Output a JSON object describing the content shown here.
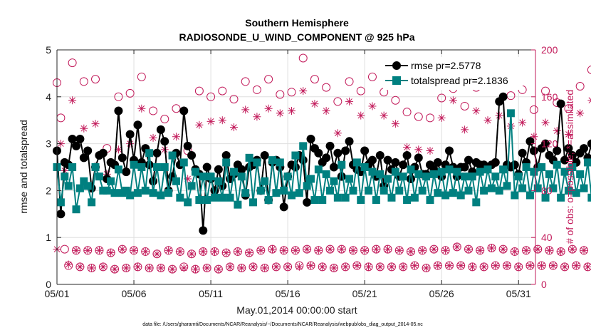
{
  "chart_data": {
    "type": "line",
    "title": "Southern Hemisphere",
    "subtitle": "RADIOSONDE_U_WIND_COMPONENT @ 925 hPa",
    "xlabel": "May.01,2014 00:00:00 start",
    "ylabel": "rmse and totalspread",
    "ylabel_right": "# of obs: o=possible; *=assimilated",
    "ylim": [
      0,
      5
    ],
    "ylim_right": [
      0,
      200
    ],
    "yticks": [
      "0",
      "1",
      "2",
      "3",
      "4",
      "5"
    ],
    "yticks_right": [
      "0",
      "40",
      "80",
      "120",
      "160",
      "200"
    ],
    "xticks": [
      "05/01",
      "05/06",
      "05/11",
      "05/16",
      "05/21",
      "05/26",
      "05/31"
    ],
    "xtick_days": [
      1,
      6,
      11,
      16,
      21,
      26,
      31
    ],
    "xlim_days": [
      1,
      32.1
    ],
    "footnote": "data file: /Users/gharamti/Documents/NCAR/Reanalysis/~/Documents/NCAR/Reanalysis/webpub/obs_diag_output_2014-05.nc",
    "colors": {
      "rmse": "#000000",
      "totalspread": "#008080",
      "obs": "#c21a5a",
      "axis": "#262626"
    },
    "grid": true,
    "legend_placement": "top-right",
    "series_x_start_day": 1,
    "series_x_step_day": 0.25,
    "series": [
      {
        "name": "rmse pr=2.5778",
        "values": [
          2.85,
          1.5,
          2.6,
          2.55,
          3.1,
          2.95,
          3.1,
          2.7,
          2.85,
          2.05,
          2.5,
          2.75,
          2.8,
          2.25,
          2.6,
          2.55,
          3.7,
          2.7,
          2.4,
          3.2,
          2.65,
          3.4,
          2.6,
          2.9,
          2.55,
          2.2,
          2.8,
          3.3,
          3.05,
          2.0,
          2.3,
          2.8,
          2.55,
          3.7,
          2.95,
          2.75,
          2.45,
          2.35,
          1.15,
          2.5,
          2.25,
          2.0,
          2.45,
          2.1,
          2.75,
          2.25,
          2.35,
          2.55,
          2.45,
          1.9,
          2.5,
          2.55,
          2.65,
          2.0,
          2.75,
          1.8,
          2.6,
          2.65,
          2.5,
          1.65,
          2.3,
          2.55,
          2.5,
          2.75,
          2.65,
          1.75,
          3.1,
          2.9,
          2.8,
          2.6,
          2.7,
          2.95,
          2.5,
          2.8,
          2.3,
          2.85,
          3.05,
          2.55,
          2.45,
          2.4,
          2.85,
          2.55,
          2.65,
          2.3,
          2.75,
          2.1,
          2.65,
          2.45,
          2.6,
          2.3,
          2.55,
          2.75,
          2.25,
          2.5,
          2.7,
          2.35,
          2.35,
          2.55,
          2.45,
          2.6,
          2.3,
          2.55,
          2.85,
          2.5,
          2.3,
          2.5,
          2.5,
          2.65,
          2.4,
          2.6,
          2.55,
          2.55,
          2.5,
          2.55,
          2.6,
          3.9,
          4.0,
          2.55,
          2.5,
          2.55,
          2.35,
          2.8,
          2.6,
          3.05,
          2.85,
          2.5,
          2.9,
          3.0,
          2.75,
          2.65,
          2.85,
          3.85,
          2.65,
          2.9,
          2.75,
          2.6,
          2.8,
          2.9,
          2.7,
          3.0,
          2.55,
          2.6,
          3.05,
          3.1,
          2.75,
          2.8,
          2.65,
          3.3,
          3.35,
          2.7,
          2.5,
          2.55,
          2.7,
          3.1,
          3.15,
          2.65,
          2.4,
          2.9,
          3.0,
          2.75,
          3.15,
          2.55,
          2.3,
          2.75,
          2.65,
          2.85,
          2.9,
          2.3,
          2.2,
          2.9,
          2.65,
          2.6,
          2.3,
          3.2,
          2.05,
          2.7,
          2.5,
          2.7,
          2.6,
          2.45,
          2.75,
          2.55,
          2.05,
          2.8,
          2.65,
          2.6
        ]
      },
      {
        "name": "totalspread pr=2.1836",
        "values": [
          2.5,
          1.75,
          2.3,
          2.1,
          2.5,
          1.6,
          2.05,
          2.2,
          2.1,
          1.75,
          2.5,
          2.3,
          2.0,
          2.0,
          2.2,
          1.95,
          2.45,
          1.95,
          2.0,
          1.9,
          2.55,
          1.95,
          2.5,
          2.0,
          2.8,
          1.95,
          2.5,
          1.9,
          2.5,
          1.95,
          2.75,
          2.2,
          1.85,
          2.6,
          1.75,
          2.1,
          2.4,
          1.8,
          2.3,
          1.8,
          2.3,
          1.85,
          2.2,
          1.85,
          2.6,
          1.85,
          2.4,
          1.7,
          2.3,
          1.95,
          2.7,
          1.75,
          2.6,
          2.0,
          2.2,
          1.8,
          2.65,
          1.95,
          2.6,
          2.0,
          2.3,
          1.9,
          2.75,
          1.95,
          2.95,
          2.1,
          2.25,
          1.8,
          2.45,
          1.8,
          2.35,
          2.0,
          2.2,
          1.85,
          2.55,
          1.85,
          2.25,
          2.0,
          2.6,
          1.8,
          2.5,
          2.0,
          2.4,
          1.8,
          2.35,
          2.0,
          2.25,
          1.85,
          2.4,
          2.0,
          2.3,
          1.8,
          2.45,
          1.85,
          2.35,
          2.0,
          2.3,
          1.8,
          2.35,
          1.95,
          2.4,
          1.9,
          2.45,
          1.95,
          2.4,
          1.9,
          2.3,
          2.0,
          2.3,
          1.75,
          2.4,
          2.0,
          2.45,
          2.05,
          2.3,
          2.0,
          2.45,
          2.1,
          3.65,
          1.9,
          2.3,
          2.05,
          2.5,
          1.9,
          2.4,
          2.05,
          2.5,
          1.85,
          2.35,
          2.05,
          2.55,
          1.85,
          2.4,
          2.0,
          2.5,
          1.95,
          2.35,
          2.05,
          2.6,
          1.85,
          2.5,
          2.05,
          2.45,
          1.95,
          2.55,
          2.0,
          2.4,
          1.85,
          2.45,
          1.95,
          2.55,
          1.95,
          2.5,
          2.05,
          2.45,
          2.0,
          2.5,
          2.05,
          2.3,
          1.9,
          2.4,
          1.95,
          2.35,
          2.05,
          2.45,
          1.85,
          2.5,
          1.7,
          2.35,
          1.75,
          2.2,
          1.8,
          2.35,
          1.75,
          2.25,
          1.75,
          2.3,
          1.75,
          2.2,
          2.05,
          3.2,
          2.1,
          2.65,
          2.4
        ]
      },
      {
        "name": "possible",
        "values": [
          172,
          142,
          30,
          16,
          189,
          29,
          15,
          173,
          29,
          14,
          175,
          29,
          15,
          116,
          27,
          13,
          160,
          30,
          14,
          163,
          29,
          15,
          177,
          28,
          14,
          148,
          26,
          14,
          141,
          29,
          13,
          150,
          28,
          15,
          114,
          26,
          13,
          165,
          28,
          14,
          160,
          28,
          13,
          165,
          27,
          15,
          158,
          28,
          14,
          173,
          27,
          15,
          166,
          29,
          14,
          175,
          30,
          15,
          162,
          29,
          15,
          164,
          29,
          16,
          193,
          30,
          16,
          175,
          29,
          15,
          168,
          30,
          14,
          156,
          30,
          15,
          173,
          29,
          16,
          165,
          29,
          15,
          177,
          30,
          15,
          164,
          30,
          15,
          157,
          29,
          15,
          147,
          28,
          16,
          143,
          29,
          14,
          142,
          30,
          16,
          159,
          29,
          16,
          167,
          32,
          16,
          152,
          30,
          15,
          168,
          29,
          15,
          180,
          31,
          16,
          175,
          30,
          16,
          161,
          28,
          15,
          166,
          29,
          16,
          149,
          30,
          16,
          165,
          29,
          16,
          155,
          28,
          15,
          150,
          30,
          16,
          169,
          29,
          15,
          183,
          29,
          15,
          171,
          30,
          15,
          176,
          29,
          16,
          165,
          29,
          15,
          179,
          30,
          16,
          182,
          31,
          15,
          185,
          29,
          15,
          187,
          30,
          12,
          157
        ]
      },
      {
        "name": "assimilated",
        "values": [
          30,
          120,
          97,
          17,
          157,
          29,
          15,
          133,
          29,
          14,
          137,
          29,
          15,
          94,
          27,
          13,
          115,
          30,
          14,
          120,
          29,
          15,
          150,
          28,
          14,
          125,
          26,
          14,
          115,
          29,
          13,
          126,
          28,
          14,
          90,
          26,
          13,
          136,
          28,
          14,
          139,
          28,
          13,
          140,
          27,
          15,
          134,
          28,
          14,
          149,
          27,
          15,
          143,
          29,
          14,
          150,
          30,
          15,
          146,
          29,
          15,
          148,
          29,
          15,
          165,
          30,
          16,
          154,
          29,
          15,
          148,
          30,
          14,
          129,
          30,
          15,
          156,
          29,
          16,
          144,
          29,
          15,
          152,
          30,
          15,
          144,
          30,
          15,
          137,
          29,
          15,
          117,
          28,
          16,
          115,
          29,
          14,
          114,
          30,
          16,
          142,
          29,
          16,
          157,
          32,
          16,
          132,
          30,
          15,
          148,
          29,
          15,
          140,
          31,
          16,
          144,
          30,
          16,
          135,
          28,
          15,
          138,
          29,
          16,
          126,
          30,
          16,
          138,
          29,
          16,
          131,
          28,
          15,
          128,
          30,
          16,
          146,
          29,
          15,
          157,
          29,
          15,
          151,
          30,
          15,
          148,
          29,
          16,
          144,
          29,
          15,
          149,
          30,
          16,
          151,
          31,
          15,
          152,
          29,
          15,
          147,
          30,
          8,
          121
        ]
      }
    ]
  }
}
